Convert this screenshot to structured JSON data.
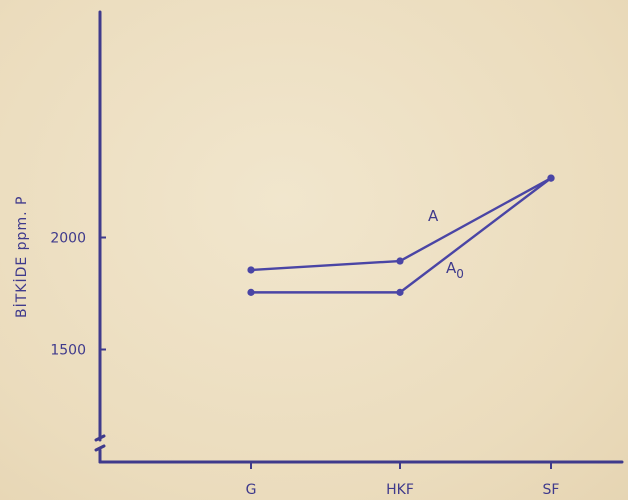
{
  "chart_data": {
    "type": "line",
    "title": "",
    "xlabel": "",
    "ylabel": "BİTKİDE ppm. P",
    "categories": [
      "G",
      "HKF",
      "SF"
    ],
    "ylim": [
      1100,
      2600
    ],
    "yticks": [
      1500,
      2000
    ],
    "grid": false,
    "series": [
      {
        "name": "A",
        "name_subscript": "",
        "values": [
          1855,
          1895,
          2265
        ]
      },
      {
        "name": "A",
        "name_subscript": "0",
        "values": [
          1755,
          1755,
          2265
        ]
      }
    ],
    "colors": {
      "axis": "#3f3a8c",
      "series": "#4a45a5",
      "background": "#ede0c4"
    }
  }
}
